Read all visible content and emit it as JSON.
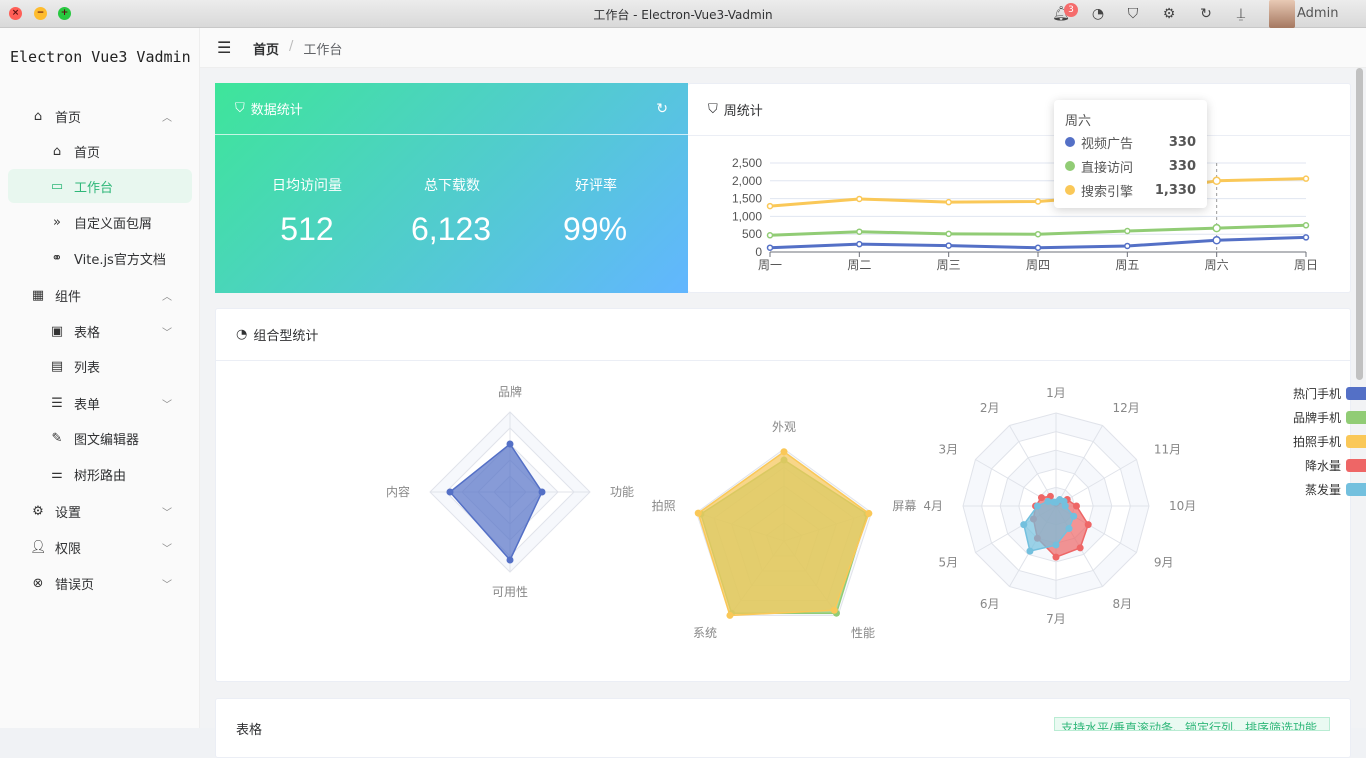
{
  "window": {
    "title": "工作台 - Electron-Vue3-Vadmin",
    "notification_count": "3",
    "user": "Admin"
  },
  "sidebar": {
    "logo": "Electron Vue3 Vadmin",
    "items": [
      {
        "label": "首页",
        "icon": "home-icon"
      },
      {
        "label": "首页",
        "icon": "house-outline-icon"
      },
      {
        "label": "工作台",
        "icon": "monitor-icon"
      },
      {
        "label": "自定义面包屑",
        "icon": "double-chevron-icon"
      },
      {
        "label": "Vite.js官方文档",
        "icon": "link-icon"
      },
      {
        "label": "组件",
        "icon": "grid-icon"
      },
      {
        "label": "表格",
        "icon": "cpu-icon"
      },
      {
        "label": "列表",
        "icon": "document-icon"
      },
      {
        "label": "表单",
        "icon": "layers-icon"
      },
      {
        "label": "图文编辑器",
        "icon": "edit-icon"
      },
      {
        "label": "树形路由",
        "icon": "sliders-icon"
      },
      {
        "label": "设置",
        "icon": "gear-icon"
      },
      {
        "label": "权限",
        "icon": "user-icon"
      },
      {
        "label": "错误页",
        "icon": "error-circle-icon"
      }
    ]
  },
  "breadcrumb": {
    "home": "首页",
    "separator": "/",
    "current": "工作台"
  },
  "stats_card": {
    "title": "数据统计",
    "items": [
      {
        "label": "日均访问量",
        "value": "512"
      },
      {
        "label": "总下载数",
        "value": "6,123"
      },
      {
        "label": "好评率",
        "value": "99%"
      }
    ]
  },
  "weekly_card": {
    "title": "周统计"
  },
  "combo_card": {
    "title": "组合型统计"
  },
  "bottom_card": {
    "title": "表格",
    "tag": "支持水平/垂直滚动条、锁定行列、排序筛选功能"
  },
  "tooltip": {
    "title": "周六",
    "rows": [
      {
        "name": "视频广告",
        "value": "330",
        "color": "#5470c6"
      },
      {
        "name": "直接访问",
        "value": "330",
        "color": "#91cc75"
      },
      {
        "name": "搜索引擎",
        "value": "1,330",
        "color": "#fac858"
      }
    ]
  },
  "chart_data": [
    {
      "type": "line",
      "categories": [
        "周一",
        "周二",
        "周三",
        "周四",
        "周五",
        "周六",
        "周日"
      ],
      "yticks": [
        "0",
        "500",
        "1,000",
        "1,500",
        "2,000",
        "2,500"
      ],
      "ylim": [
        0,
        2500
      ],
      "series": [
        {
          "name": "视频广告",
          "color": "#5470c6",
          "values": [
            120,
            220,
            180,
            120,
            170,
            330,
            410
          ]
        },
        {
          "name": "直接访问",
          "color": "#91cc75",
          "values": [
            470,
            570,
            510,
            500,
            590,
            670,
            750
          ]
        },
        {
          "name": "搜索引擎",
          "color": "#fac858",
          "values": [
            1290,
            1490,
            1400,
            1420,
            1610,
            2000,
            2060
          ]
        }
      ]
    },
    {
      "type": "radar",
      "indicators": [
        "品牌",
        "功能",
        "可用性",
        "内容"
      ],
      "max": 100,
      "series": [
        {
          "name": "",
          "color": "#5470c6",
          "values": [
            60,
            40,
            85,
            75
          ]
        }
      ]
    },
    {
      "type": "radar",
      "indicators": [
        "外观",
        "屏幕",
        "性能",
        "系统",
        "拍照"
      ],
      "max": 100,
      "series": [
        {
          "name": "",
          "color": "#91cc75",
          "values": [
            88,
            95,
            97,
            97,
            95
          ]
        },
        {
          "name": "",
          "color": "#fac858",
          "values": [
            97,
            97,
            93,
            100,
            98
          ]
        }
      ]
    },
    {
      "type": "radar",
      "indicators": [
        "1月",
        "12月",
        "11月",
        "10月",
        "9月",
        "8月",
        "7月",
        "6月",
        "5月",
        "4月",
        "3月",
        "2月"
      ],
      "max": 100,
      "legend": [
        {
          "name": "热门手机",
          "color": "#5470c6"
        },
        {
          "name": "品牌手机",
          "color": "#91cc75"
        },
        {
          "name": "拍照手机",
          "color": "#fac858"
        },
        {
          "name": "降水量",
          "color": "#ee6666"
        },
        {
          "name": "蒸发量",
          "color": "#73c0de"
        }
      ],
      "series": [
        {
          "name": "降水量",
          "color": "#ee6666",
          "values": [
            3,
            6,
            14,
            22,
            40,
            52,
            55,
            40,
            28,
            22,
            18,
            12
          ]
        },
        {
          "name": "蒸发量",
          "color": "#73c0de",
          "values": [
            4,
            8,
            10,
            10,
            22,
            28,
            42,
            56,
            40,
            20,
            10,
            5
          ]
        }
      ]
    }
  ]
}
